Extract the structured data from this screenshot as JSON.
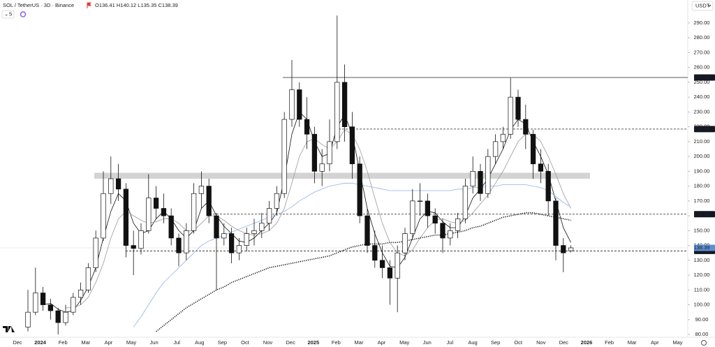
{
  "chart_data": {
    "type": "candlestick",
    "title": "SOL / TetherUS · 3D · Binance",
    "ohlc_text": "O136.41 H140.12 L135.35 C138.39",
    "indicator_count": "5",
    "currency": "USDT",
    "ylim": [
      78.6,
      305.5
    ],
    "yticks": [
      80,
      90,
      100,
      110,
      120,
      130,
      140,
      150,
      160,
      170,
      180,
      190,
      200,
      210,
      220,
      230,
      240,
      250,
      260,
      270,
      280,
      290
    ],
    "yticks_labels": [
      "80.00",
      "90.00",
      "100.00",
      "110.00",
      "120.00",
      "130.00",
      "140.00",
      "150.00",
      "160.00",
      "170.00",
      "180.00",
      "190.00",
      "200.00",
      "210.00",
      "220.00",
      "230.00",
      "240.00",
      "250.00",
      "260.00",
      "270.00",
      "280.00",
      "290.00"
    ],
    "xticks": [
      "Dec",
      "2024",
      "Feb",
      "Mar",
      "Apr",
      "May",
      "Jun",
      "Jul",
      "Aug",
      "Sep",
      "Oct",
      "Nov",
      "Dec",
      "2025",
      "Feb",
      "Mar",
      "Apr",
      "May",
      "Jun",
      "Jul",
      "Aug",
      "Sep",
      "Oct",
      "Nov",
      "Dec",
      "2026",
      "Feb",
      "Mar",
      "Apr",
      "May"
    ],
    "up_color": "#ffffff",
    "down_color": "#111111",
    "candles": [
      [
        85,
        110,
        82,
        95
      ],
      [
        95,
        125,
        93,
        108
      ],
      [
        108,
        112,
        96,
        100
      ],
      [
        100,
        104,
        90,
        96
      ],
      [
        96,
        98,
        80,
        88
      ],
      [
        88,
        100,
        86,
        95
      ],
      [
        95,
        108,
        93,
        105
      ],
      [
        105,
        115,
        100,
        110
      ],
      [
        110,
        128,
        108,
        125
      ],
      [
        125,
        150,
        122,
        145
      ],
      [
        145,
        190,
        143,
        175
      ],
      [
        175,
        200,
        168,
        185
      ],
      [
        185,
        195,
        170,
        178
      ],
      [
        178,
        182,
        132,
        140
      ],
      [
        140,
        150,
        120,
        138
      ],
      [
        138,
        155,
        134,
        150
      ],
      [
        150,
        188,
        148,
        172
      ],
      [
        172,
        180,
        158,
        165
      ],
      [
        165,
        175,
        155,
        160
      ],
      [
        160,
        165,
        140,
        145
      ],
      [
        145,
        148,
        126,
        135
      ],
      [
        135,
        155,
        130,
        150
      ],
      [
        150,
        182,
        148,
        175
      ],
      [
        175,
        190,
        165,
        180
      ],
      [
        180,
        185,
        155,
        160
      ],
      [
        160,
        162,
        110,
        145
      ],
      [
        145,
        155,
        140,
        148
      ],
      [
        148,
        152,
        128,
        135
      ],
      [
        135,
        145,
        130,
        140
      ],
      [
        140,
        152,
        136,
        148
      ],
      [
        148,
        158,
        140,
        150
      ],
      [
        150,
        162,
        145,
        155
      ],
      [
        155,
        170,
        150,
        165
      ],
      [
        165,
        180,
        160,
        175
      ],
      [
        175,
        230,
        172,
        225
      ],
      [
        225,
        265,
        220,
        245
      ],
      [
        245,
        250,
        220,
        225
      ],
      [
        225,
        240,
        205,
        215
      ],
      [
        215,
        220,
        182,
        190
      ],
      [
        190,
        205,
        180,
        195
      ],
      [
        195,
        225,
        190,
        210
      ],
      [
        210,
        295,
        205,
        250
      ],
      [
        250,
        262,
        210,
        220
      ],
      [
        220,
        230,
        185,
        195
      ],
      [
        195,
        200,
        155,
        160
      ],
      [
        160,
        165,
        135,
        140
      ],
      [
        140,
        150,
        125,
        130
      ],
      [
        130,
        140,
        118,
        125
      ],
      [
        125,
        130,
        100,
        118
      ],
      [
        118,
        140,
        95,
        135
      ],
      [
        135,
        152,
        130,
        148
      ],
      [
        148,
        178,
        145,
        170
      ],
      [
        170,
        182,
        160,
        170
      ],
      [
        170,
        175,
        152,
        160
      ],
      [
        160,
        165,
        148,
        155
      ],
      [
        155,
        158,
        135,
        145
      ],
      [
        145,
        155,
        140,
        150
      ],
      [
        150,
        162,
        145,
        158
      ],
      [
        158,
        185,
        155,
        180
      ],
      [
        180,
        200,
        175,
        190
      ],
      [
        190,
        195,
        170,
        175
      ],
      [
        175,
        205,
        172,
        200
      ],
      [
        200,
        215,
        195,
        210
      ],
      [
        210,
        220,
        205,
        215
      ],
      [
        215,
        253,
        212,
        240
      ],
      [
        240,
        245,
        220,
        225
      ],
      [
        225,
        235,
        205,
        215
      ],
      [
        215,
        218,
        185,
        195
      ],
      [
        195,
        205,
        182,
        190
      ],
      [
        190,
        195,
        160,
        170
      ],
      [
        170,
        172,
        130,
        140
      ],
      [
        140,
        145,
        122,
        135
      ],
      [
        136.41,
        140.12,
        135.35,
        138.39
      ]
    ],
    "series": [
      {
        "color": "#111111",
        "style": "solid",
        "values": [
          null,
          null,
          100,
          101,
          97,
          95,
          96,
          103,
          112,
          125,
          145,
          163,
          175,
          170,
          155,
          148,
          150,
          158,
          163,
          158,
          150,
          145,
          150,
          165,
          170,
          160,
          153,
          148,
          143,
          142,
          145,
          150,
          155,
          162,
          185,
          215,
          230,
          225,
          210,
          200,
          202,
          220,
          228,
          215,
          190,
          165,
          148,
          135,
          126,
          125,
          132,
          145,
          158,
          163,
          162,
          156,
          152,
          152,
          160,
          172,
          178,
          185,
          195,
          205,
          218,
          225,
          222,
          210,
          200,
          188,
          170,
          152,
          142
        ]
      },
      {
        "color": "#9a9a9a",
        "style": "solid",
        "values": [
          null,
          null,
          null,
          null,
          null,
          98,
          98,
          100,
          105,
          115,
          128,
          145,
          158,
          163,
          160,
          157,
          155,
          156,
          158,
          158,
          155,
          150,
          150,
          155,
          160,
          160,
          157,
          153,
          150,
          148,
          147,
          148,
          150,
          155,
          165,
          182,
          200,
          210,
          212,
          208,
          205,
          210,
          218,
          215,
          205,
          190,
          172,
          155,
          142,
          135,
          133,
          137,
          145,
          152,
          157,
          158,
          156,
          155,
          157,
          162,
          168,
          174,
          182,
          190,
          200,
          210,
          215,
          215,
          210,
          200,
          188,
          175,
          165
        ]
      },
      {
        "color": "#8fb4e8",
        "style": "solid",
        "values": [
          null,
          null,
          null,
          null,
          null,
          null,
          null,
          null,
          null,
          null,
          null,
          null,
          null,
          null,
          85,
          92,
          100,
          108,
          115,
          120,
          125,
          130,
          135,
          140,
          143,
          145,
          147,
          149,
          151,
          153,
          155,
          157,
          159,
          161,
          163,
          166,
          170,
          173,
          176,
          178,
          180,
          181,
          182,
          182,
          181,
          180,
          179,
          178,
          177,
          177,
          177,
          177,
          177,
          177,
          177,
          177,
          177,
          178,
          178,
          179,
          179,
          180,
          180,
          181,
          181,
          181,
          181,
          180,
          179,
          177,
          173,
          169,
          166
        ]
      },
      {
        "color": "#111111",
        "style": "dotted",
        "values": [
          null,
          null,
          null,
          null,
          null,
          null,
          null,
          null,
          null,
          null,
          null,
          null,
          null,
          null,
          null,
          null,
          null,
          82,
          86,
          90,
          94,
          98,
          101,
          104,
          107,
          110,
          112,
          115,
          117,
          119,
          121,
          123,
          125,
          126,
          127,
          128,
          129,
          130,
          131,
          132,
          133,
          135,
          137,
          139,
          140,
          141,
          141,
          141,
          142,
          142,
          143,
          144,
          145,
          146,
          147,
          147,
          148,
          149,
          150,
          152,
          153,
          155,
          157,
          159,
          160,
          161,
          162,
          162,
          161,
          160,
          159,
          158,
          157
        ]
      }
    ],
    "zone": [
      185,
      189
    ],
    "levels": [
      {
        "value": 253.26,
        "style": "solid"
      },
      {
        "value": 218.46,
        "style": "dashed"
      },
      {
        "value": 161.09,
        "style": "dashed"
      },
      {
        "value": 136.3,
        "label": "136.30",
        "style": "dashed"
      }
    ],
    "last_price": 138.39,
    "last_color": "#5b8fd6"
  }
}
